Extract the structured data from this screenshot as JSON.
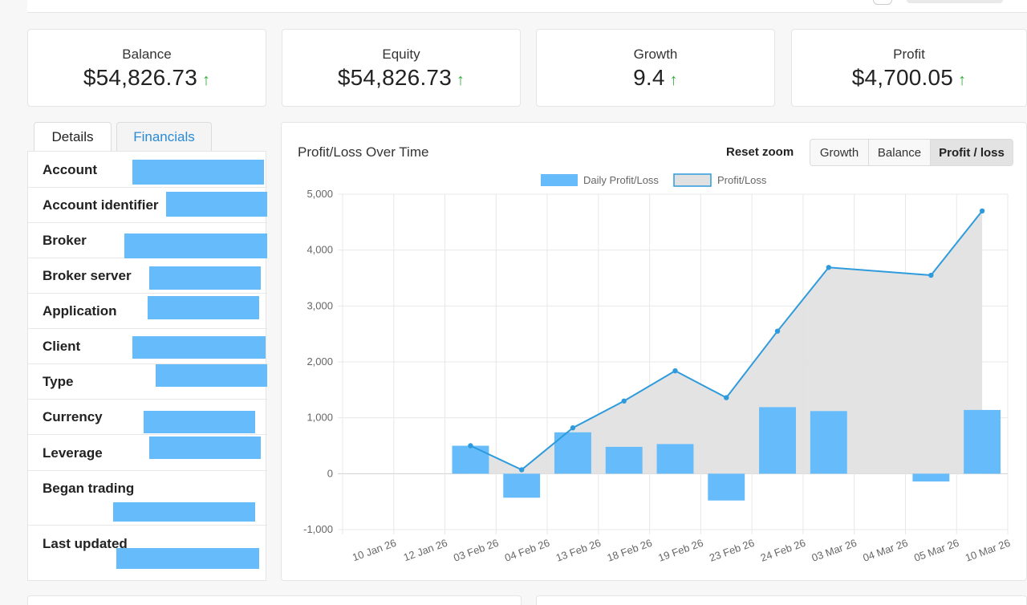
{
  "stats": {
    "balance": {
      "label": "Balance",
      "value": "$54,826.73",
      "arrow": "↑"
    },
    "equity": {
      "label": "Equity",
      "value": "$54,826.73",
      "arrow": "↑"
    },
    "growth": {
      "label": "Growth",
      "value": "9.4",
      "arrow": "↑"
    },
    "profit": {
      "label": "Profit",
      "value": "$4,700.05",
      "arrow": "↑"
    }
  },
  "tabs": {
    "details": "Details",
    "financials": "Financials"
  },
  "details": {
    "rows": [
      {
        "label": "Account"
      },
      {
        "label": "Account identifier"
      },
      {
        "label": "Broker"
      },
      {
        "label": "Broker server"
      },
      {
        "label": "Application"
      },
      {
        "label": "Client"
      },
      {
        "label": "Type"
      },
      {
        "label": "Currency"
      },
      {
        "label": "Leverage"
      },
      {
        "label": "Began trading"
      },
      {
        "label": "Last updated"
      }
    ]
  },
  "chart_panel": {
    "title": "Profit/Loss Over Time",
    "reset_zoom": "Reset zoom",
    "buttons": {
      "growth": "Growth",
      "balance": "Balance",
      "profit_loss": "Profit / loss"
    }
  },
  "colors": {
    "bar": "#66bcfa",
    "line": "#2e9bdc",
    "area": "#e1e1e1",
    "arrow_up": "#2eae3c",
    "link": "#2a8ad6"
  },
  "chart_data": {
    "type": "bar",
    "title": "Profit/Loss Over Time",
    "xlabel": "",
    "ylabel": "",
    "ylim": [
      -1000,
      5000
    ],
    "yticks": [
      -1000,
      0,
      1000,
      2000,
      3000,
      4000,
      5000
    ],
    "ytick_labels": [
      "-1,000",
      "0",
      "1,000",
      "2,000",
      "3,000",
      "4,000",
      "5,000"
    ],
    "categories": [
      "10 Jan 26",
      "12 Jan 26",
      "03 Feb 26",
      "04 Feb 26",
      "13 Feb 26",
      "18 Feb 26",
      "19 Feb 26",
      "23 Feb 26",
      "24 Feb 26",
      "03 Mar 26",
      "04 Mar 26",
      "05 Mar 26",
      "10 Mar 26"
    ],
    "legend": [
      "Daily Profit/Loss",
      "Profit/Loss"
    ],
    "series": [
      {
        "name": "Daily Profit/Loss",
        "type": "bar",
        "values": [
          null,
          null,
          500,
          -430,
          740,
          480,
          530,
          -480,
          1190,
          1120,
          null,
          -140,
          1140
        ]
      },
      {
        "name": "Profit/Loss",
        "type": "area-line",
        "values": [
          null,
          null,
          500,
          70,
          820,
          1300,
          1840,
          1360,
          2550,
          3690,
          null,
          3550,
          4700
        ]
      }
    ]
  }
}
